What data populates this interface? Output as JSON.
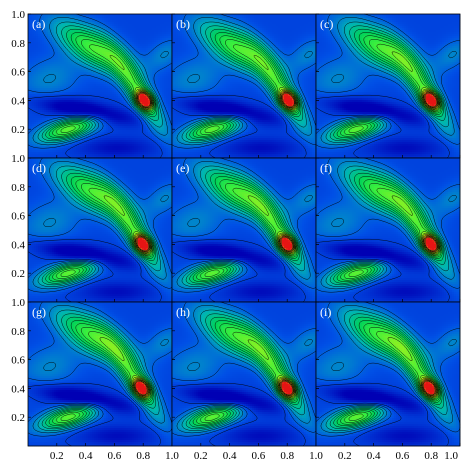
{
  "chart_data": {
    "type": "heatmap",
    "grid": {
      "rows": 3,
      "cols": 3
    },
    "xlim": [
      0.0,
      1.0
    ],
    "ylim": [
      0.0,
      1.0
    ],
    "x_ticks": [
      "0.2",
      "0.4",
      "0.6",
      "0.8",
      "1.0"
    ],
    "y_ticks": [
      "0.2",
      "0.4",
      "0.6",
      "0.8",
      "1.0"
    ],
    "colormap": [
      "#0000b4",
      "#0050e6",
      "#00b4b4",
      "#00d25a",
      "#3cf03c",
      "#b4f014",
      "#e6a01e",
      "#e61414"
    ],
    "contour_color": "#000000",
    "panels": [
      {
        "label": "(a)",
        "peak": [
          0.81,
          0.4
        ]
      },
      {
        "label": "(b)",
        "peak": [
          0.81,
          0.4
        ]
      },
      {
        "label": "(c)",
        "peak": [
          0.8,
          0.4
        ]
      },
      {
        "label": "(d)",
        "peak": [
          0.8,
          0.4
        ]
      },
      {
        "label": "(e)",
        "peak": [
          0.8,
          0.4
        ]
      },
      {
        "label": "(f)",
        "peak": [
          0.8,
          0.4
        ]
      },
      {
        "label": "(g)",
        "peak": [
          0.79,
          0.4
        ]
      },
      {
        "label": "(h)",
        "peak": [
          0.8,
          0.4
        ]
      },
      {
        "label": "(i)",
        "peak": [
          0.79,
          0.4
        ]
      }
    ]
  }
}
